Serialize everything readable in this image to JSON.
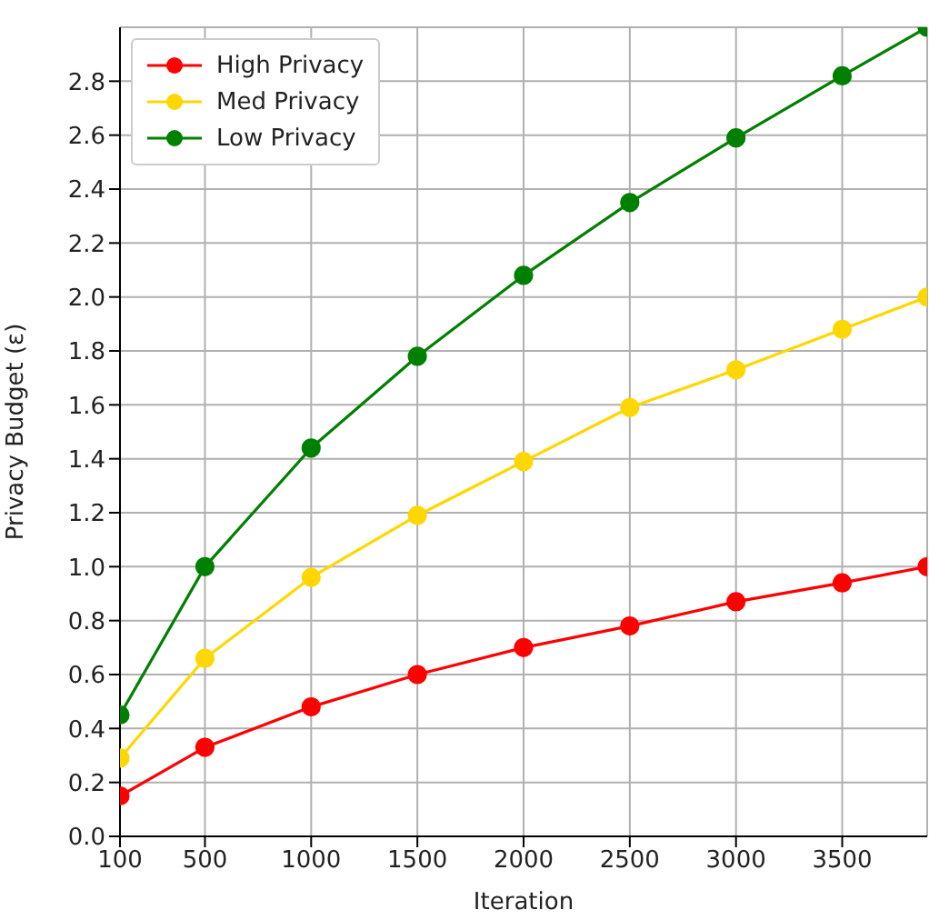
{
  "chart_data": {
    "type": "line",
    "xlabel": "Iteration",
    "ylabel": "Privacy Budget (ε)",
    "x": [
      100,
      500,
      1000,
      1500,
      2000,
      2500,
      3000,
      3500,
      3900
    ],
    "series": [
      {
        "name": "High Privacy",
        "color": "#ff0000",
        "values": [
          0.15,
          0.33,
          0.48,
          0.6,
          0.7,
          0.78,
          0.87,
          0.94,
          1.0
        ]
      },
      {
        "name": "Med Privacy",
        "color": "#ffd700",
        "values": [
          0.29,
          0.66,
          0.96,
          1.19,
          1.39,
          1.59,
          1.73,
          1.88,
          2.0
        ]
      },
      {
        "name": "Low Privacy",
        "color": "#008000",
        "values": [
          0.45,
          1.0,
          1.44,
          1.78,
          2.08,
          2.35,
          2.59,
          2.82,
          3.0
        ]
      }
    ],
    "xlim": [
      100,
      3900
    ],
    "xticks": [
      100,
      500,
      1000,
      1500,
      2000,
      2500,
      3000,
      3500
    ],
    "ylim": [
      0,
      3.0
    ],
    "yticks": [
      {
        "value": 0,
        "label": "0.0"
      },
      0.2,
      0.4,
      0.6,
      0.8,
      {
        "value": 1,
        "label": "1.0"
      },
      1.2,
      1.4,
      1.6,
      1.8,
      {
        "value": 2,
        "label": "2.0"
      },
      2.2,
      2.4,
      2.6,
      2.8
    ],
    "grid": true,
    "legend": "top left",
    "marker": "circle",
    "line_style": "solid"
  }
}
